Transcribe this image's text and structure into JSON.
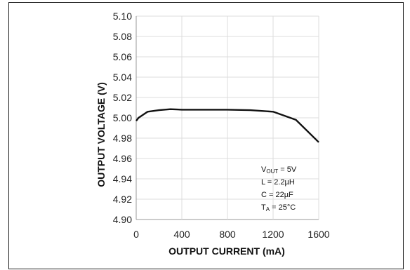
{
  "chart_data": {
    "type": "line",
    "xlabel": "OUTPUT CURRENT (mA)",
    "ylabel": "OUTPUT VOLTAGE (V)",
    "xlim": [
      0,
      1600
    ],
    "ylim": [
      4.9,
      5.1
    ],
    "xticks": [
      "0",
      "400",
      "800",
      "1200",
      "1600"
    ],
    "yticks": [
      "4.90",
      "4.92",
      "4.94",
      "4.96",
      "4.98",
      "5.00",
      "5.02",
      "5.04",
      "5.06",
      "5.08",
      "5.10"
    ],
    "grid": true,
    "series": [
      {
        "x": [
          0,
          20,
          100,
          200,
          300,
          400,
          600,
          800,
          1000,
          1200,
          1400,
          1600
        ],
        "y": [
          4.997,
          5.0,
          5.006,
          5.0075,
          5.0085,
          5.008,
          5.008,
          5.008,
          5.0075,
          5.006,
          4.998,
          4.976
        ]
      }
    ],
    "annotation": {
      "vout": {
        "main": "V",
        "sub": "OUT",
        "rest": " = 5V"
      },
      "l": "L = 2.2µH",
      "c": "C = 22µF",
      "ta": {
        "main": "T",
        "sub": "A",
        "rest": " = 25°C"
      }
    }
  }
}
